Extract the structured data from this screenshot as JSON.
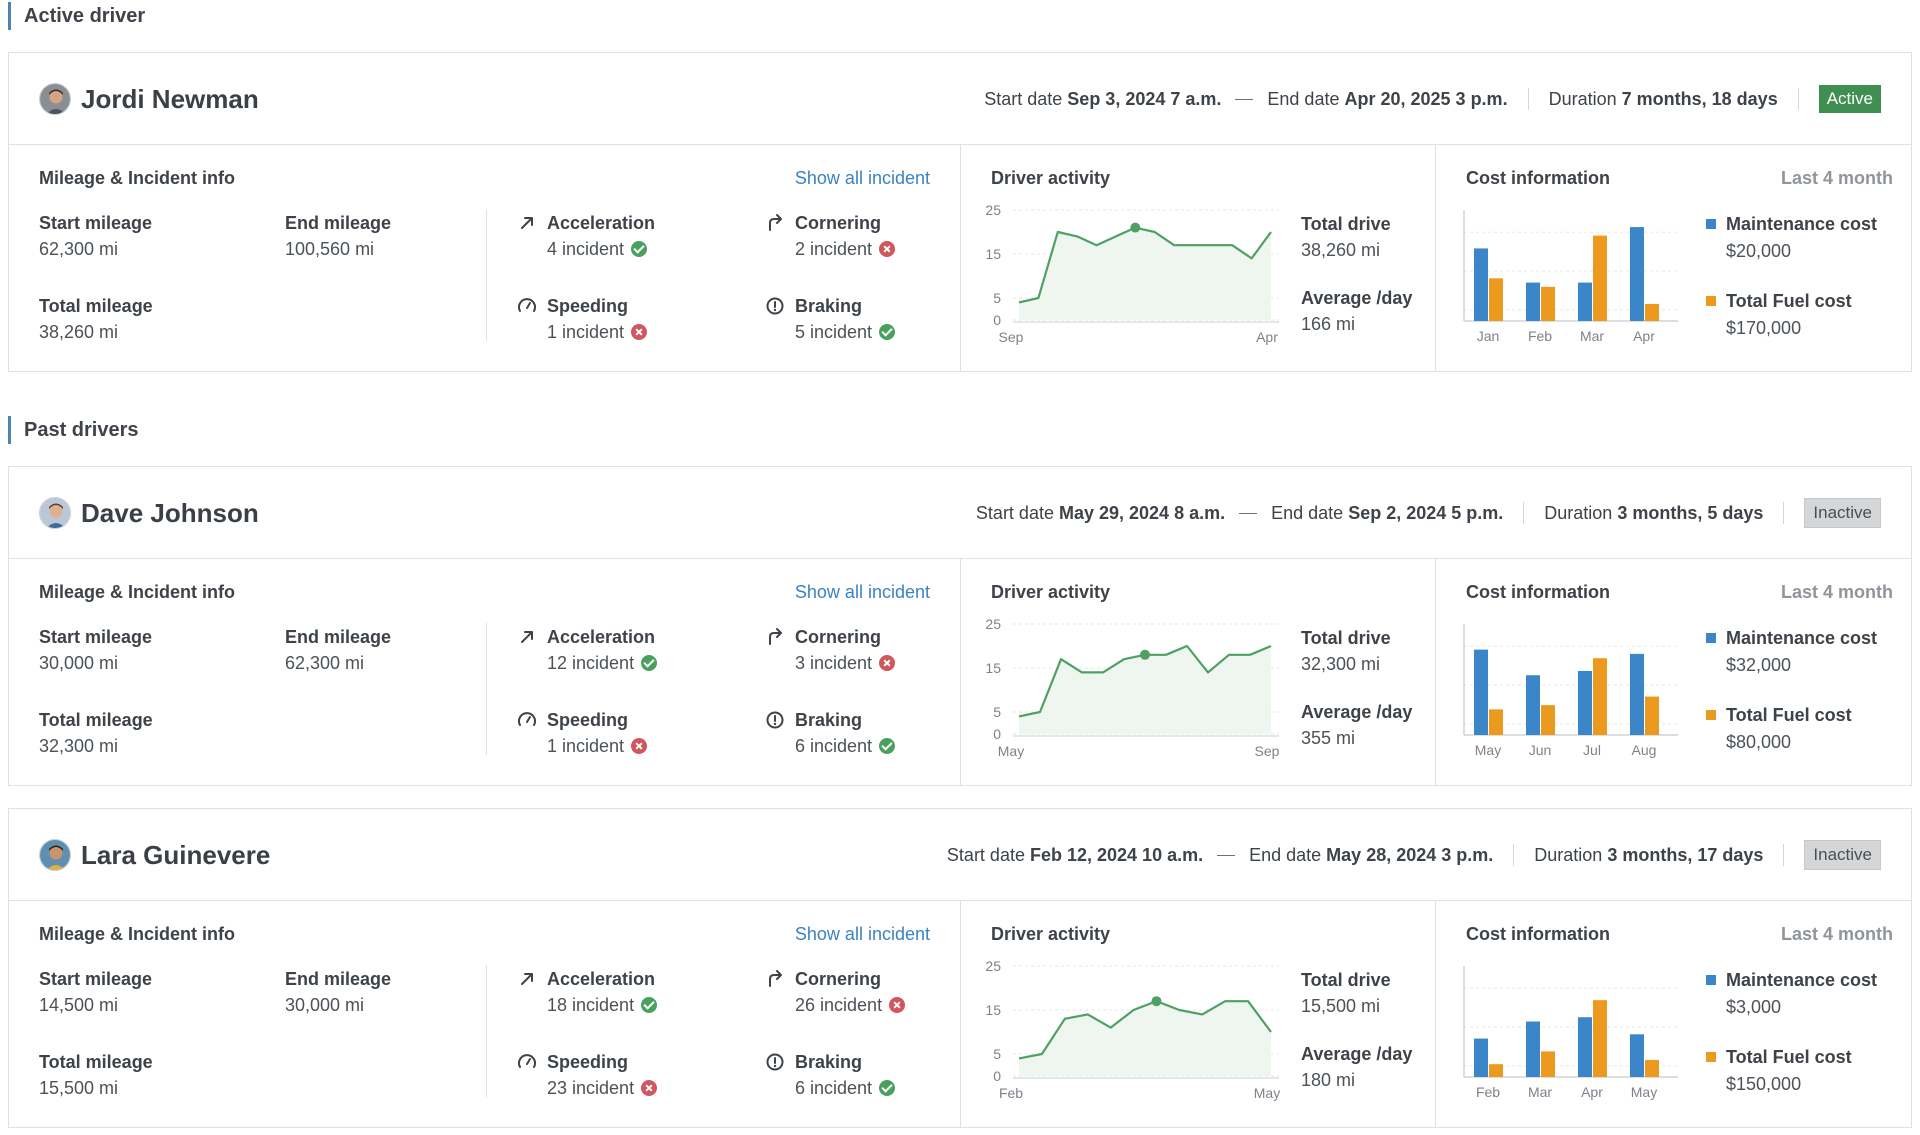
{
  "sections": {
    "active_title": "Active driver",
    "past_title": "Past drivers"
  },
  "labels": {
    "start_date": "Start date",
    "end_date": "End date",
    "duration": "Duration",
    "mileage_title": "Mileage & Incident info",
    "show_all": "Show all incident",
    "start_mileage": "Start mileage",
    "end_mileage": "End mileage",
    "total_mileage": "Total mileage",
    "acceleration": "Acceleration",
    "cornering": "Cornering",
    "speeding": "Speeding",
    "braking": "Braking",
    "activity_title": "Driver activity",
    "total_drive": "Total drive",
    "average_day": "Average /day",
    "cost_title": "Cost information",
    "cost_period": "Last 4 month",
    "maintenance_cost": "Maintenance cost",
    "fuel_cost": "Total Fuel cost"
  },
  "colors": {
    "maintenance": "#3a86c8",
    "fuel": "#ec9a1d",
    "activity_line": "#4fa063",
    "activity_fill": "#eef6ef",
    "ok": "#4aa15e",
    "bad": "#d0575d"
  },
  "icons": {
    "acceleration": "arrow-up-right-icon",
    "cornering": "turn-right-icon",
    "speeding": "speedometer-icon",
    "braking": "alert-circle-icon",
    "ok": "check-circle-icon",
    "bad": "x-circle-icon"
  },
  "drivers": [
    {
      "name": "Jordi Newman",
      "start_date": "Sep 3, 2024 7 a.m.",
      "end_date": "Apr 20, 2025 3 p.m.",
      "duration": "7 months, 18 days",
      "status": "Active",
      "start_mileage": "62,300 mi",
      "end_mileage": "100,560 mi",
      "total_mileage": "38,260 mi",
      "incidents": {
        "acceleration": {
          "text": "4 incident",
          "ok": true
        },
        "cornering": {
          "text": "2 incident",
          "ok": false
        },
        "speeding": {
          "text": "1 incident",
          "ok": false
        },
        "braking": {
          "text": "5 incident",
          "ok": true
        }
      },
      "total_drive": "38,260 mi",
      "average_day": "166 mi",
      "maintenance_cost": "$20,000",
      "fuel_cost": "$170,000",
      "chart_data": [
        {
          "type": "area",
          "title": "Driver activity",
          "x_labels": [
            "Sep",
            "Apr"
          ],
          "y_ticks": [
            0,
            5,
            15,
            25
          ],
          "ylim": [
            0,
            25
          ],
          "values": [
            4,
            5,
            20,
            19,
            17,
            19,
            21,
            20,
            17,
            17,
            17,
            17,
            14,
            20
          ],
          "highlight_index": 6
        },
        {
          "type": "bar",
          "title": "Cost information",
          "categories": [
            "Jan",
            "Feb",
            "Mar",
            "Apr"
          ],
          "series": [
            {
              "name": "Maintenance cost",
              "values": [
                17,
                9,
                9,
                22
              ]
            },
            {
              "name": "Total Fuel cost",
              "values": [
                10,
                8,
                20,
                4
              ]
            }
          ],
          "ylim": [
            0,
            26
          ]
        }
      ]
    },
    {
      "name": "Dave Johnson",
      "start_date": "May 29, 2024 8 a.m.",
      "end_date": "Sep 2, 2024 5 p.m.",
      "duration": "3 months, 5 days",
      "status": "Inactive",
      "start_mileage": "30,000 mi",
      "end_mileage": "62,300 mi",
      "total_mileage": "32,300 mi",
      "incidents": {
        "acceleration": {
          "text": "12 incident",
          "ok": true
        },
        "cornering": {
          "text": "3 incident",
          "ok": false
        },
        "speeding": {
          "text": "1 incident",
          "ok": false
        },
        "braking": {
          "text": "6 incident",
          "ok": true
        }
      },
      "total_drive": "32,300 mi",
      "average_day": "355 mi",
      "maintenance_cost": "$32,000",
      "fuel_cost": "$80,000",
      "chart_data": [
        {
          "type": "area",
          "title": "Driver activity",
          "x_labels": [
            "May",
            "Sep"
          ],
          "y_ticks": [
            0,
            5,
            15,
            25
          ],
          "ylim": [
            0,
            25
          ],
          "values": [
            4,
            5,
            17,
            14,
            14,
            17,
            18,
            18,
            20,
            14,
            18,
            18,
            20
          ],
          "highlight_index": 6
        },
        {
          "type": "bar",
          "title": "Cost information",
          "categories": [
            "May",
            "Jun",
            "Jul",
            "Aug"
          ],
          "series": [
            {
              "name": "Maintenance cost",
              "values": [
                20,
                14,
                15,
                19
              ]
            },
            {
              "name": "Total Fuel cost",
              "values": [
                6,
                7,
                18,
                9
              ]
            }
          ],
          "ylim": [
            0,
            26
          ]
        }
      ]
    },
    {
      "name": "Lara Guinevere",
      "start_date": "Feb 12, 2024 10 a.m.",
      "end_date": "May 28, 2024 3 p.m.",
      "duration": "3 months, 17 days",
      "status": "Inactive",
      "start_mileage": "14,500 mi",
      "end_mileage": "30,000 mi",
      "total_mileage": "15,500 mi",
      "incidents": {
        "acceleration": {
          "text": "18 incident",
          "ok": true
        },
        "cornering": {
          "text": "26 incident",
          "ok": false
        },
        "speeding": {
          "text": "23 incident",
          "ok": false
        },
        "braking": {
          "text": "6 incident",
          "ok": true
        }
      },
      "total_drive": "15,500 mi",
      "average_day": "180 mi",
      "maintenance_cost": "$3,000",
      "fuel_cost": "$150,000",
      "chart_data": [
        {
          "type": "area",
          "title": "Driver activity",
          "x_labels": [
            "Feb",
            "May"
          ],
          "y_ticks": [
            0,
            5,
            15,
            25
          ],
          "ylim": [
            0,
            25
          ],
          "values": [
            4,
            5,
            13,
            14,
            11,
            15,
            17,
            15,
            14,
            17,
            17,
            10
          ],
          "highlight_index": 6
        },
        {
          "type": "bar",
          "title": "Cost information",
          "categories": [
            "Feb",
            "Mar",
            "Apr",
            "May"
          ],
          "series": [
            {
              "name": "Maintenance cost",
              "values": [
                9,
                13,
                14,
                10
              ]
            },
            {
              "name": "Total Fuel cost",
              "values": [
                3,
                6,
                18,
                4
              ]
            }
          ],
          "ylim": [
            0,
            26
          ]
        }
      ]
    }
  ]
}
